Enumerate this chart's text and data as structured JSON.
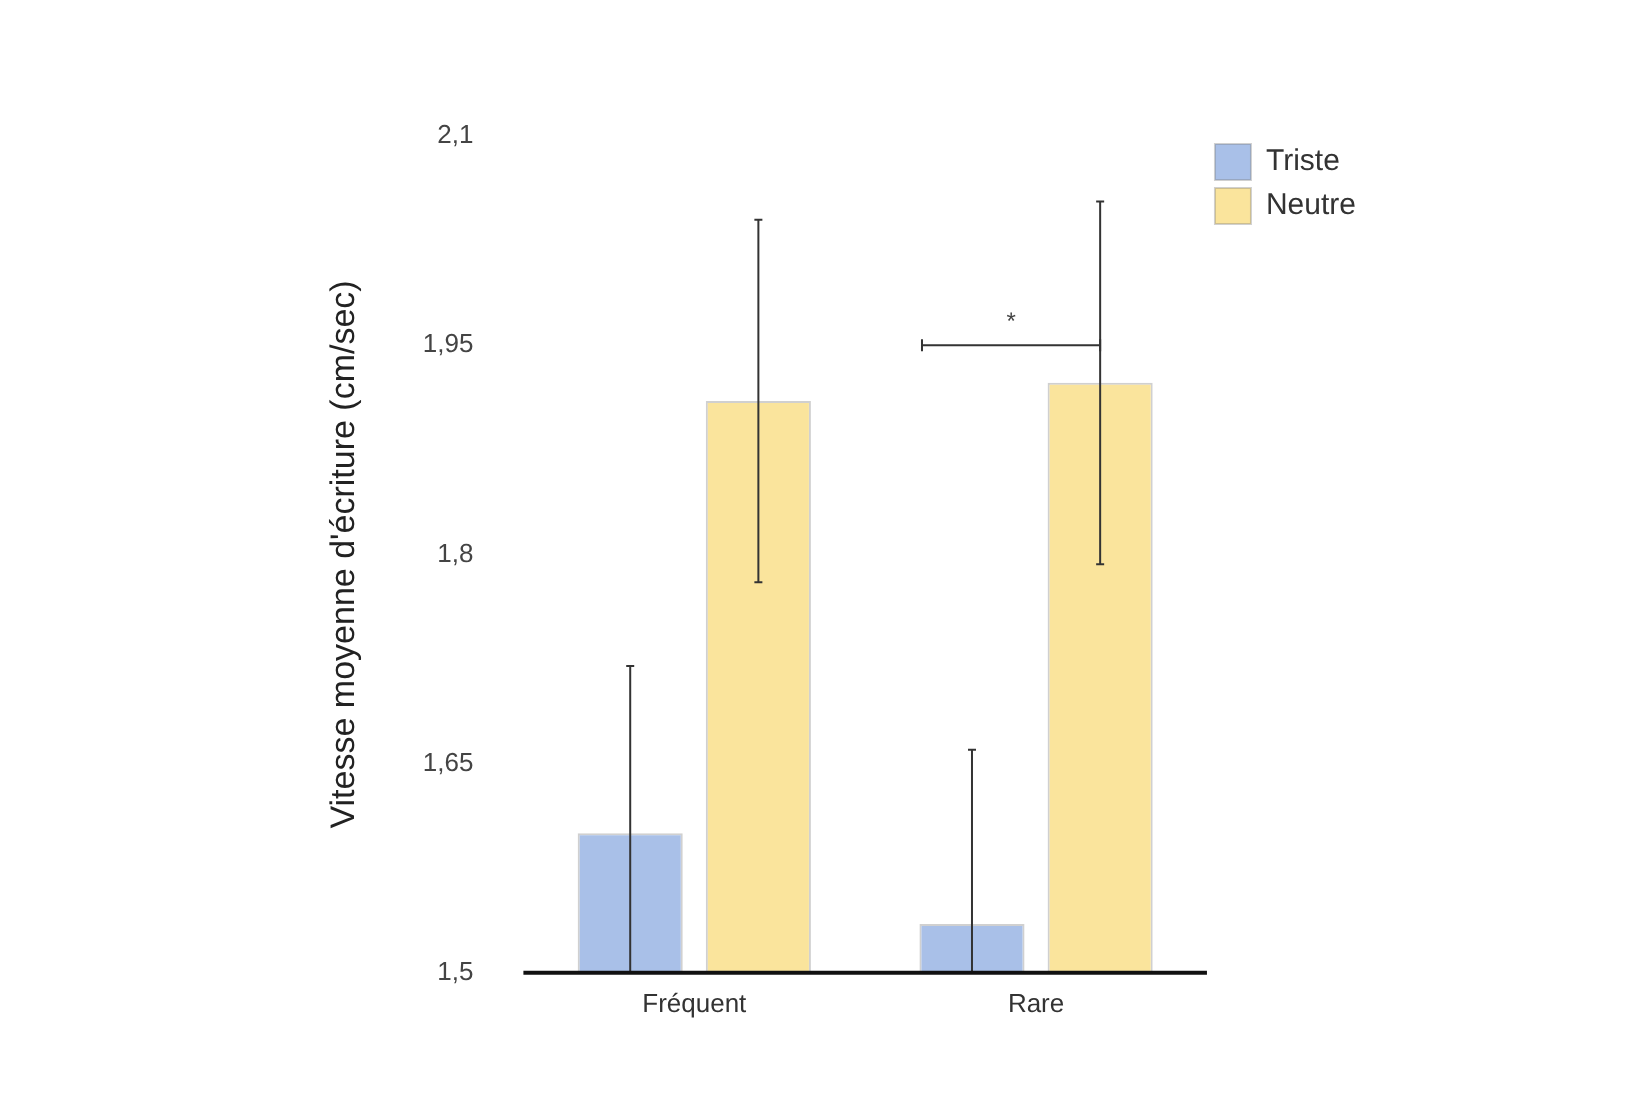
{
  "chart_data": {
    "type": "bar",
    "ylabel": "Vitesse moyenne d'écriture (cm/sec)",
    "categories": [
      "Fréquent",
      "Rare"
    ],
    "series": [
      {
        "name": "Triste",
        "color": "#a9c0e8",
        "values": [
          1.6,
          1.535
        ],
        "errors": [
          [
            1.5,
            1.72
          ],
          [
            1.5,
            1.66
          ]
        ]
      },
      {
        "name": "Neutre",
        "color": "#fae49c",
        "values": [
          1.91,
          1.923
        ],
        "errors": [
          0.13,
          0.13
        ]
      }
    ],
    "ylim": [
      1.5,
      2.1
    ],
    "yticks": [
      {
        "value": 1.5,
        "label": "1,5"
      },
      {
        "value": 1.65,
        "label": "1,65"
      },
      {
        "value": 1.8,
        "label": "1,8"
      },
      {
        "value": 1.95,
        "label": "1,95"
      },
      {
        "value": 2.1,
        "label": "2,1"
      }
    ],
    "annotations": [
      "*"
    ],
    "legend": "right",
    "grid": false
  }
}
